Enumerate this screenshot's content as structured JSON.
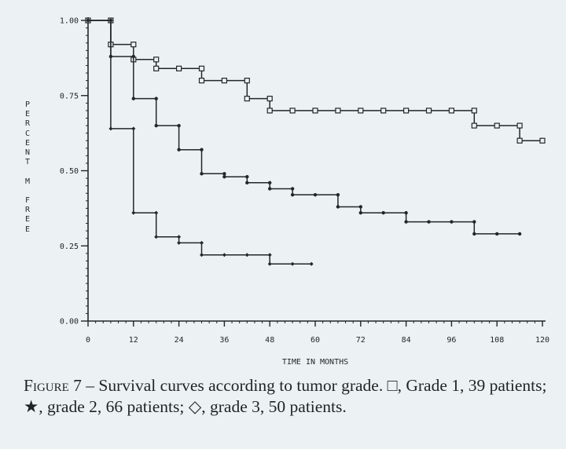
{
  "chart_data": {
    "type": "line",
    "step": true,
    "title": "",
    "xlabel": "TIME IN MONTHS",
    "ylabel": "PERCENT M FREE",
    "xlim": [
      0,
      120
    ],
    "ylim": [
      0.0,
      1.0
    ],
    "x_ticks": [
      0,
      12,
      24,
      36,
      48,
      60,
      72,
      84,
      96,
      108,
      120
    ],
    "x_tick_labels": [
      "0",
      "12",
      "24",
      "36",
      "48",
      "60",
      "72",
      "84",
      "96",
      "108",
      "120"
    ],
    "y_ticks": [
      0.0,
      0.25,
      0.5,
      0.75,
      1.0
    ],
    "y_tick_labels": [
      "0.00",
      "0.25",
      "0.50",
      "0.75",
      "1.00"
    ],
    "grid": false,
    "series": [
      {
        "name": "Grade 1",
        "marker": "square",
        "points": [
          [
            0,
            1.0
          ],
          [
            6,
            1.0
          ],
          [
            6,
            0.92
          ],
          [
            12,
            0.92
          ],
          [
            12,
            0.87
          ],
          [
            18,
            0.87
          ],
          [
            18,
            0.84
          ],
          [
            24,
            0.84
          ],
          [
            30,
            0.84
          ],
          [
            30,
            0.8
          ],
          [
            36,
            0.8
          ],
          [
            42,
            0.8
          ],
          [
            42,
            0.74
          ],
          [
            48,
            0.74
          ],
          [
            48,
            0.7
          ],
          [
            54,
            0.7
          ],
          [
            60,
            0.7
          ],
          [
            66,
            0.7
          ],
          [
            72,
            0.7
          ],
          [
            78,
            0.7
          ],
          [
            84,
            0.7
          ],
          [
            90,
            0.7
          ],
          [
            96,
            0.7
          ],
          [
            102,
            0.7
          ],
          [
            102,
            0.65
          ],
          [
            108,
            0.65
          ],
          [
            114,
            0.65
          ],
          [
            114,
            0.6
          ],
          [
            120,
            0.6
          ]
        ]
      },
      {
        "name": "Grade 2",
        "marker": "star",
        "points": [
          [
            0,
            1.0
          ],
          [
            6,
            1.0
          ],
          [
            6,
            0.88
          ],
          [
            12,
            0.88
          ],
          [
            12,
            0.74
          ],
          [
            18,
            0.74
          ],
          [
            18,
            0.65
          ],
          [
            24,
            0.65
          ],
          [
            24,
            0.57
          ],
          [
            30,
            0.57
          ],
          [
            30,
            0.49
          ],
          [
            36,
            0.49
          ],
          [
            36,
            0.48
          ],
          [
            42,
            0.48
          ],
          [
            42,
            0.46
          ],
          [
            48,
            0.46
          ],
          [
            48,
            0.44
          ],
          [
            54,
            0.44
          ],
          [
            54,
            0.42
          ],
          [
            60,
            0.42
          ],
          [
            66,
            0.42
          ],
          [
            66,
            0.38
          ],
          [
            72,
            0.38
          ],
          [
            72,
            0.36
          ],
          [
            78,
            0.36
          ],
          [
            84,
            0.36
          ],
          [
            84,
            0.33
          ],
          [
            90,
            0.33
          ],
          [
            96,
            0.33
          ],
          [
            102,
            0.33
          ],
          [
            102,
            0.29
          ],
          [
            108,
            0.29
          ],
          [
            114,
            0.29
          ]
        ]
      },
      {
        "name": "Grade 3",
        "marker": "diamond",
        "points": [
          [
            0,
            1.0
          ],
          [
            6,
            1.0
          ],
          [
            6,
            0.64
          ],
          [
            12,
            0.64
          ],
          [
            12,
            0.36
          ],
          [
            18,
            0.36
          ],
          [
            18,
            0.28
          ],
          [
            24,
            0.28
          ],
          [
            24,
            0.26
          ],
          [
            30,
            0.26
          ],
          [
            30,
            0.22
          ],
          [
            36,
            0.22
          ],
          [
            42,
            0.22
          ],
          [
            48,
            0.22
          ],
          [
            48,
            0.19
          ],
          [
            54,
            0.19
          ],
          [
            59,
            0.19
          ]
        ]
      }
    ]
  },
  "caption": {
    "figure_label": "Figure 7",
    "text": " – Survival curves according to tumor grade. □, Grade 1, 39 patients; ★, grade 2, 66 patients; ◇, grade 3, 50 patients."
  }
}
